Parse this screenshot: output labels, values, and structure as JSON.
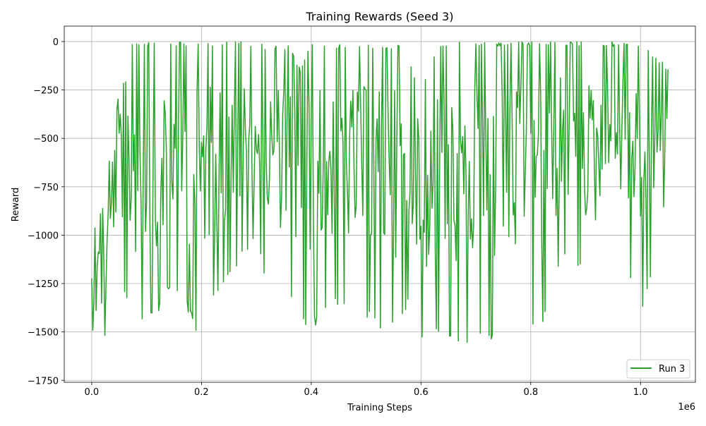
{
  "chart_data": {
    "type": "line",
    "title": "Training Rewards (Seed 3)",
    "xlabel": "Training Steps",
    "ylabel": "Reward",
    "x_offset_label": "1e6",
    "xlim": [
      -50000,
      1100000
    ],
    "ylim": [
      -1760,
      80
    ],
    "x_ticks": [
      0,
      200000,
      400000,
      600000,
      800000,
      1000000
    ],
    "x_tick_labels": [
      "0.0",
      "0.2",
      "0.4",
      "0.6",
      "0.8",
      "1.0"
    ],
    "y_ticks": [
      0,
      -250,
      -500,
      -750,
      -1000,
      -1250,
      -1500,
      -1750
    ],
    "y_tick_labels": [
      "0",
      "−250",
      "−500",
      "−750",
      "−1000",
      "−1250",
      "−1500",
      "−1750"
    ],
    "grid": true,
    "legend_position": "bottom-right",
    "series": [
      {
        "name": "Run 3",
        "color": "#2ca02c",
        "x_start": 0,
        "x_end": 1050000,
        "x_step": 2000,
        "envelope": [
          {
            "x": 0,
            "upper": -1000,
            "lower": -1670
          },
          {
            "x": 10000,
            "upper": -900,
            "lower": -1640
          },
          {
            "x": 20000,
            "upper": -850,
            "lower": -1600
          },
          {
            "x": 30000,
            "upper": -700,
            "lower": -1450
          },
          {
            "x": 40000,
            "upper": -250,
            "lower": -1300
          },
          {
            "x": 50000,
            "upper": -10,
            "lower": -1200
          },
          {
            "x": 80000,
            "upper": 0,
            "lower": -1500
          },
          {
            "x": 110000,
            "upper": 0,
            "lower": -1450
          },
          {
            "x": 150000,
            "upper": 0,
            "lower": -1250
          },
          {
            "x": 190000,
            "upper": 0,
            "lower": -1500
          },
          {
            "x": 250000,
            "upper": 0,
            "lower": -1250
          },
          {
            "x": 300000,
            "upper": 0,
            "lower": -1000
          },
          {
            "x": 320000,
            "upper": -20,
            "lower": -1280
          },
          {
            "x": 360000,
            "upper": -20,
            "lower": -1300
          },
          {
            "x": 380000,
            "upper": -140,
            "lower": -1470
          },
          {
            "x": 400000,
            "upper": -10,
            "lower": -1500
          },
          {
            "x": 440000,
            "upper": -10,
            "lower": -1350
          },
          {
            "x": 460000,
            "upper": -20,
            "lower": -1380
          },
          {
            "x": 500000,
            "upper": -15,
            "lower": -1440
          },
          {
            "x": 540000,
            "upper": -15,
            "lower": -1530
          },
          {
            "x": 570000,
            "upper": -15,
            "lower": -1430
          },
          {
            "x": 585000,
            "upper": -150,
            "lower": -1200
          },
          {
            "x": 600000,
            "upper": -250,
            "lower": -1545
          },
          {
            "x": 630000,
            "upper": -15,
            "lower": -1530
          },
          {
            "x": 660000,
            "upper": 0,
            "lower": -1550
          },
          {
            "x": 700000,
            "upper": 0,
            "lower": -1560
          },
          {
            "x": 740000,
            "upper": 0,
            "lower": -1550
          },
          {
            "x": 780000,
            "upper": 0,
            "lower": -1530
          },
          {
            "x": 820000,
            "upper": 0,
            "lower": -1500
          },
          {
            "x": 860000,
            "upper": 0,
            "lower": -1100
          },
          {
            "x": 920000,
            "upper": 0,
            "lower": -1300
          },
          {
            "x": 960000,
            "upper": 0,
            "lower": -1050
          },
          {
            "x": 1000000,
            "upper": 0,
            "lower": -1450
          },
          {
            "x": 1050000,
            "upper": -130,
            "lower": -800
          }
        ]
      }
    ]
  }
}
